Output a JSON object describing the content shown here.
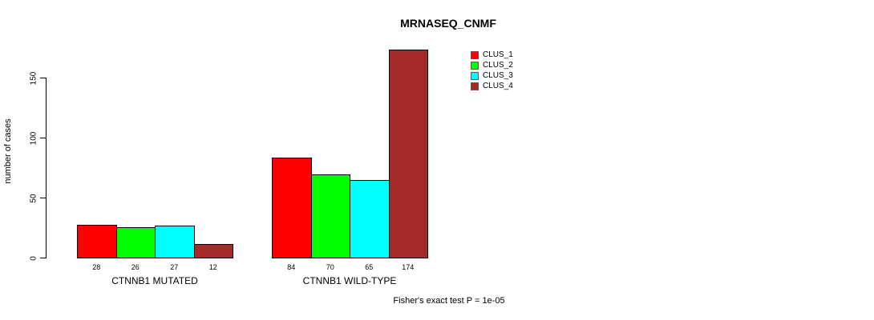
{
  "chart_data": {
    "type": "bar",
    "title": "MRNASEQ_CNMF",
    "ylabel": "number of cases",
    "ylim": [
      0,
      175
    ],
    "yticks": [
      0,
      50,
      100,
      150
    ],
    "grid": false,
    "legend_position": "top-right-inside",
    "categories": [
      "CTNNB1 MUTATED",
      "CTNNB1 WILD-TYPE"
    ],
    "series": [
      {
        "name": "CLUS_1",
        "color": "#ff0000",
        "values": [
          28,
          84
        ]
      },
      {
        "name": "CLUS_2",
        "color": "#00ff00",
        "values": [
          26,
          70
        ]
      },
      {
        "name": "CLUS_3",
        "color": "#00ffff",
        "values": [
          27,
          65
        ]
      },
      {
        "name": "CLUS_4",
        "color": "#a52a2a",
        "values": [
          12,
          174
        ]
      }
    ],
    "bar_value_labels": [
      [
        28,
        26,
        27,
        12
      ],
      [
        84,
        70,
        65,
        174
      ]
    ],
    "footnote": "Fisher's exact test P = 1e-05"
  }
}
